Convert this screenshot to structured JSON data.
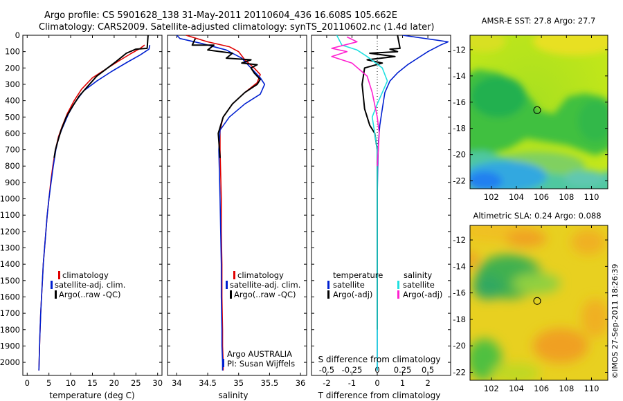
{
  "header": {
    "line1": "Argo profile: CS 5901628_138 31-May-2011 20110604_436 16.608S 105.662E",
    "line2": "Climatology: CARS2009. Satellite-adjusted climatology: synTS_20110602.nc (1.4d later)"
  },
  "footer": {
    "stamp": "©IMOS 27-Sep-2011 18:26:39",
    "institution": "Argo AUSTRALIA",
    "pi": "PI: Susan Wijffels"
  },
  "colors": {
    "climatology": "#e00000",
    "satellite": "#0020d0",
    "argo": "#000000",
    "satellite_salinity": "#20e0e0",
    "argo_salinity": "#ff20d0"
  },
  "chart_data": [
    {
      "type": "line",
      "panel": "temperature",
      "xlabel": "temperature (deg C)",
      "ylabel": "",
      "xlim": [
        -1,
        31
      ],
      "ylim": [
        2080,
        0
      ],
      "y_inverted": true,
      "xticks": [
        "0",
        "5",
        "10",
        "15",
        "20",
        "25",
        "30"
      ],
      "yticks": [
        "0",
        "100",
        "200",
        "300",
        "400",
        "500",
        "600",
        "700",
        "800",
        "900",
        "1000",
        "1100",
        "1200",
        "1300",
        "1400",
        "1500",
        "1600",
        "1700",
        "1800",
        "1900",
        "2000"
      ],
      "legend": [
        "climatology",
        "satellite-adj. clim.",
        "Argo(..raw -QC)"
      ],
      "series": [
        {
          "name": "climatology",
          "color": "climatology",
          "x": [
            27.0,
            26.0,
            24.0,
            21.5,
            18.5,
            15.0,
            12.5,
            10.8,
            9.2,
            8.0,
            7.2,
            6.5,
            5.9,
            5.4,
            5.0,
            4.6,
            4.3,
            4.0,
            3.7,
            3.5,
            3.3,
            3.1,
            2.9,
            2.7
          ],
          "y": [
            60,
            80,
            110,
            150,
            200,
            260,
            330,
            400,
            480,
            560,
            620,
            700,
            800,
            900,
            1000,
            1100,
            1200,
            1300,
            1400,
            1500,
            1600,
            1700,
            1850,
            2050
          ]
        },
        {
          "name": "satellite-adj. clim.",
          "color": "satellite",
          "x": [
            28.2,
            28.0,
            26.0,
            23.0,
            19.5,
            16.0,
            13.0,
            11.0,
            9.5,
            8.2,
            7.3,
            6.6,
            6.0,
            5.5,
            5.0,
            4.6,
            4.3,
            4.0,
            3.7,
            3.5,
            3.3,
            3.1,
            2.9,
            2.7
          ],
          "y": [
            60,
            85,
            120,
            165,
            220,
            280,
            340,
            410,
            480,
            560,
            620,
            700,
            800,
            900,
            1000,
            1100,
            1200,
            1300,
            1400,
            1500,
            1600,
            1700,
            1850,
            2050
          ]
        },
        {
          "name": "Argo(..raw -QC)",
          "color": "argo",
          "x": [
            27.8,
            27.6,
            25.0,
            22.8,
            20.5,
            18.0,
            16.0,
            14.0,
            12.0,
            10.3,
            9.0,
            7.8,
            7.0,
            6.5,
            6.2
          ],
          "y": [
            0,
            80,
            85,
            110,
            160,
            210,
            250,
            310,
            370,
            440,
            500,
            580,
            650,
            700,
            750
          ]
        }
      ]
    },
    {
      "type": "line",
      "panel": "salinity",
      "xlabel": "salinity",
      "xlim": [
        33.85,
        36.1
      ],
      "ylim": [
        2080,
        0
      ],
      "y_inverted": true,
      "xticks": [
        "34",
        "34.5",
        "35",
        "35.5",
        "36"
      ],
      "legend": [
        "climatology",
        "satellite-adj. clim.",
        "Argo(..raw -QC)"
      ],
      "series": [
        {
          "name": "climatology",
          "color": "climatology",
          "x": [
            34.15,
            34.5,
            34.85,
            35.0,
            35.1,
            35.25,
            35.35,
            35.3,
            35.1,
            34.9,
            34.75,
            34.7,
            34.7,
            34.71,
            34.72,
            34.72,
            34.73,
            34.73,
            34.74,
            34.74,
            34.75,
            34.75
          ],
          "y": [
            0,
            40,
            70,
            100,
            150,
            200,
            240,
            290,
            350,
            420,
            500,
            580,
            700,
            850,
            1000,
            1200,
            1400,
            1600,
            1800,
            1900,
            2000,
            2050
          ]
        },
        {
          "name": "satellite-adj. clim.",
          "color": "satellite",
          "x": [
            34.0,
            34.05,
            34.4,
            34.8,
            35.05,
            35.2,
            35.35,
            35.42,
            35.35,
            35.1,
            34.85,
            34.7,
            34.68,
            34.69,
            34.7,
            34.71,
            34.72,
            34.72,
            34.73,
            34.73,
            34.74,
            34.74
          ],
          "y": [
            0,
            20,
            50,
            90,
            140,
            200,
            260,
            300,
            360,
            420,
            500,
            580,
            700,
            850,
            1000,
            1200,
            1400,
            1600,
            1800,
            1900,
            2000,
            2050
          ]
        },
        {
          "name": "Argo(..raw -QC)",
          "color": "argo",
          "x": [
            34.3,
            34.25,
            34.6,
            34.5,
            34.9,
            34.8,
            35.2,
            35.05,
            35.3,
            35.2,
            35.25,
            35.35,
            35.3,
            35.1,
            34.9,
            34.75,
            34.67,
            34.7
          ],
          "y": [
            20,
            60,
            60,
            90,
            110,
            140,
            150,
            170,
            180,
            200,
            230,
            270,
            300,
            350,
            420,
            500,
            600,
            750
          ]
        }
      ]
    },
    {
      "type": "line",
      "panel": "differences",
      "xlabel": "T difference from climatology",
      "x2label": "S difference from climatology",
      "xlim": [
        -2.6,
        2.9
      ],
      "x2lim": [
        -0.65,
        0.725
      ],
      "ylim": [
        2080,
        0
      ],
      "y_inverted": true,
      "xticks": [
        "-2",
        "-1",
        "0",
        "1",
        "2"
      ],
      "x2ticks": [
        "-0.5",
        "-0.25",
        "0",
        "0.25",
        "0.5"
      ],
      "legend": {
        "temperature_title": "temperature",
        "salinity_title": "salinity",
        "items": [
          "satellite",
          "Argo(-adj)",
          "satellite",
          "Argo(-adj)"
        ]
      },
      "series": [
        {
          "name": "satellite",
          "group": "temperature",
          "color": "satellite",
          "x": [
            1.0,
            2.8,
            2.5,
            2.0,
            1.5,
            1.2,
            0.8,
            0.5,
            0.3,
            0.2,
            0.1,
            0.05,
            0.02,
            0,
            0,
            0,
            0
          ],
          "y": [
            0,
            40,
            60,
            100,
            150,
            180,
            230,
            280,
            350,
            450,
            550,
            650,
            800,
            1000,
            1400,
            1800,
            2050
          ]
        },
        {
          "name": "Argo(-adj)",
          "group": "temperature",
          "color": "argo",
          "x": [
            0.8,
            0.9,
            0.5,
            0.8,
            -0.3,
            0.7,
            -0.4,
            0.2,
            -0.5,
            -0.6,
            -0.5,
            -0.3,
            -0.1,
            0,
            0,
            0
          ],
          "y": [
            0,
            80,
            85,
            100,
            110,
            130,
            150,
            170,
            200,
            300,
            450,
            550,
            600,
            700,
            1200,
            1800
          ]
        },
        {
          "name": "satellite",
          "group": "salinity",
          "color": "satellite_salinity",
          "x": [
            -0.4,
            -0.35,
            -0.2,
            -0.1,
            0.05,
            0.1,
            0.05,
            0.0,
            -0.05,
            0,
            0,
            0,
            0
          ],
          "y": [
            0,
            60,
            90,
            130,
            200,
            280,
            350,
            420,
            500,
            700,
            1000,
            1500,
            2050
          ]
        },
        {
          "name": "Argo(-adj)",
          "group": "salinity",
          "color": "argo_salinity",
          "x": [
            -0.3,
            -0.2,
            -0.45,
            -0.3,
            -0.45,
            -0.25,
            -0.1,
            -0.05,
            0.0,
            0.02,
            0.0
          ],
          "y": [
            10,
            40,
            80,
            100,
            130,
            170,
            250,
            350,
            500,
            600,
            800
          ]
        }
      ]
    },
    {
      "type": "heatmap",
      "panel": "sst_map",
      "title": "AMSR-E SST: 27.8 Argo: 27.7",
      "xlim": [
        100.3,
        111.3
      ],
      "ylim": [
        -22.6,
        -10.9
      ],
      "xticks": [
        "102",
        "104",
        "106",
        "108",
        "110"
      ],
      "yticks": [
        "-12",
        "-14",
        "-16",
        "-18",
        "-20",
        "-22"
      ],
      "marker": {
        "lon": 105.662,
        "lat": -16.608
      }
    },
    {
      "type": "heatmap",
      "panel": "sla_map",
      "title": "Altimetric SLA: 0.24 Argo: 0.088",
      "xlim": [
        100.3,
        111.3
      ],
      "ylim": [
        -22.6,
        -10.9
      ],
      "xticks": [
        "102",
        "104",
        "106",
        "108",
        "110"
      ],
      "yticks": [
        "-12",
        "-14",
        "-16",
        "-18",
        "-20",
        "-22"
      ],
      "marker": {
        "lon": 105.662,
        "lat": -16.608
      }
    }
  ]
}
